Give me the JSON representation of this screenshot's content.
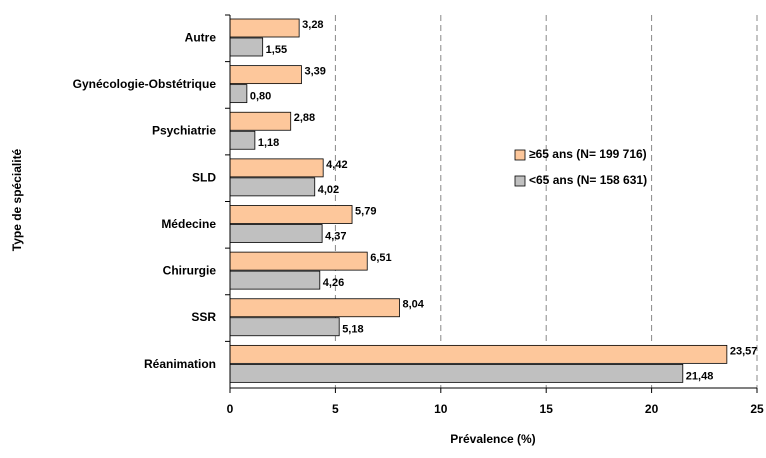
{
  "chart_data": {
    "type": "bar",
    "orientation": "horizontal",
    "y_label": "Type de spécialité",
    "x_label": "Prévalence (%)",
    "categories": [
      "Autre",
      "Gynécologie-Obstétrique",
      "Psychiatrie",
      "SLD",
      "Médecine",
      "Chirurgie",
      "SSR",
      "Réanimation"
    ],
    "series": [
      {
        "name": "≥65 ans (N= 199 716)",
        "color": "#fdc79b",
        "values": [
          3.28,
          3.39,
          2.88,
          4.42,
          5.79,
          6.51,
          8.04,
          23.57
        ],
        "value_labels": [
          "3,28",
          "3,39",
          "2,88",
          "4,42",
          "5,79",
          "6,51",
          "8,04",
          "23,57"
        ]
      },
      {
        "name": "<65 ans (N= 158 631)",
        "color": "#c0c0c0",
        "values": [
          1.55,
          0.8,
          1.18,
          4.02,
          4.37,
          4.26,
          5.18,
          21.48
        ],
        "value_labels": [
          "1,55",
          "0,80",
          "1,18",
          "4,02",
          "4,37",
          "4,26",
          "5,18",
          "21,48"
        ]
      }
    ],
    "xlim": [
      0,
      25
    ],
    "xticks": [
      0,
      5,
      10,
      15,
      20,
      25
    ],
    "grid": true,
    "legend": "right"
  }
}
